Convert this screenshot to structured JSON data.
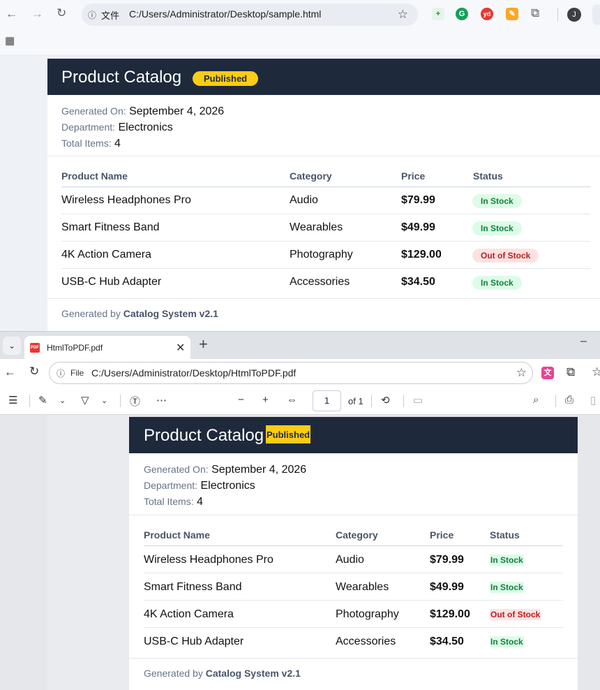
{
  "browser1": {
    "url_prefix": "文件",
    "url": "C:/Users/Administrator/Desktop/sample.html",
    "profile_initial": "J"
  },
  "report": {
    "title": "Product Catalog",
    "status_badge": "Published",
    "meta": [
      {
        "label": "Generated On:",
        "value": "September 4, 2026"
      },
      {
        "label": "Department:",
        "value": "Electronics"
      },
      {
        "label": "Total Items:",
        "value": "4"
      }
    ],
    "columns": [
      "Product Name",
      "Category",
      "Price",
      "Status"
    ],
    "rows": [
      {
        "name": "Wireless Headphones Pro",
        "category": "Audio",
        "price": "$79.99",
        "status": "In Stock"
      },
      {
        "name": "Smart Fitness Band",
        "category": "Wearables",
        "price": "$49.99",
        "status": "In Stock"
      },
      {
        "name": "4K Action Camera",
        "category": "Photography",
        "price": "$129.00",
        "status": "Out of Stock"
      },
      {
        "name": "USB-C Hub Adapter",
        "category": "Accessories",
        "price": "$34.50",
        "status": "In Stock"
      }
    ],
    "footer_prefix": "Generated by",
    "footer_system": "Catalog System v2.1"
  },
  "browser2": {
    "tab_title": "HtmlToPDF.pdf",
    "url_label": "File",
    "url": "C:/Users/Administrator/Desktop/HtmlToPDF.pdf",
    "page_number": "1",
    "page_total": "of 1"
  },
  "colors": {
    "header_bg": "#1e293b",
    "badge_yellow": "#facc15",
    "in_stock_bg": "#dcfce7",
    "out_stock_bg": "#fee2e2"
  }
}
